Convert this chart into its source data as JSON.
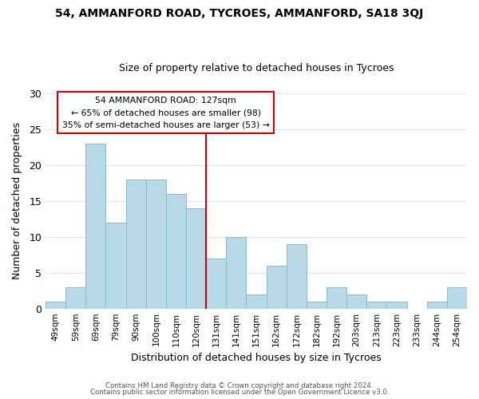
{
  "title": "54, AMMANFORD ROAD, TYCROES, AMMANFORD, SA18 3QJ",
  "subtitle": "Size of property relative to detached houses in Tycroes",
  "xlabel": "Distribution of detached houses by size in Tycroes",
  "ylabel": "Number of detached properties",
  "footer_line1": "Contains HM Land Registry data © Crown copyright and database right 2024.",
  "footer_line2": "Contains public sector information licensed under the Open Government Licence v3.0.",
  "bar_labels": [
    "49sqm",
    "59sqm",
    "69sqm",
    "79sqm",
    "90sqm",
    "100sqm",
    "110sqm",
    "120sqm",
    "131sqm",
    "141sqm",
    "151sqm",
    "162sqm",
    "172sqm",
    "182sqm",
    "192sqm",
    "203sqm",
    "213sqm",
    "223sqm",
    "233sqm",
    "244sqm",
    "254sqm"
  ],
  "bar_values": [
    1,
    3,
    23,
    12,
    18,
    18,
    16,
    14,
    7,
    10,
    2,
    6,
    9,
    1,
    3,
    2,
    1,
    1,
    0,
    1,
    3
  ],
  "bar_color": "#b8d9e8",
  "bar_edge_color": "#88bbcc",
  "ylim": [
    0,
    30
  ],
  "yticks": [
    0,
    5,
    10,
    15,
    20,
    25,
    30
  ],
  "prop_line_color": "#cc0000",
  "legend_title": "54 AMMANFORD ROAD: 127sqm",
  "legend_line1": "← 65% of detached houses are smaller (98)",
  "legend_line2": "35% of semi-detached houses are larger (53) →",
  "legend_box_facecolor": "#ffffff",
  "legend_box_edgecolor": "#cc0000",
  "figure_facecolor": "#ffffff",
  "axes_facecolor": "#ffffff",
  "grid_color": "#d8e4ec",
  "title_fontsize": 10,
  "subtitle_fontsize": 9
}
